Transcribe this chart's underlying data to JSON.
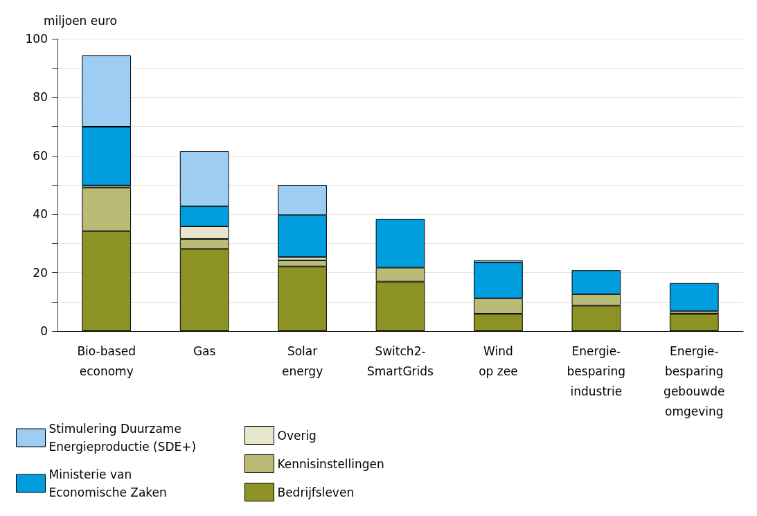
{
  "chart_data": {
    "type": "bar",
    "stacked": true,
    "ylabel": "miljoen euro",
    "categories": [
      "Bio-based\neconomy",
      "Gas",
      "Solar\nenergy",
      "Switch2-\nSmartGrids",
      "Wind\nop zee",
      "Energie-\nbesparing\nindustrie",
      "Energie-\nbesparing\ngebouwde\nomgeving"
    ],
    "series": [
      {
        "name": "Bedrijfsleven",
        "color": "#8c9223",
        "values": [
          34.2,
          28.1,
          22.1,
          16.9,
          5.9,
          8.7,
          5.9
        ]
      },
      {
        "name": "Kennisinstellingen",
        "color": "#babb77",
        "values": [
          14.9,
          3.4,
          2.1,
          4.8,
          5.3,
          3.9,
          0.9
        ]
      },
      {
        "name": "Overig",
        "color": "#e5e6cb",
        "values": [
          0.7,
          4.3,
          1.1,
          0,
          0,
          0,
          0
        ]
      },
      {
        "name": "Ministerie van Economische Zaken",
        "color": "#009ddf",
        "values": [
          20.1,
          6.9,
          14.4,
          16.7,
          12.3,
          8.2,
          9.6
        ]
      },
      {
        "name": "Stimulering Duurzame Energieproductie (SDE+)",
        "color": "#9dcdf2",
        "values": [
          24.4,
          18.9,
          10.3,
          0,
          0.7,
          0,
          0
        ]
      }
    ],
    "ylim": [
      0,
      100
    ],
    "yticks": [
      0,
      {
        "value": 10,
        "label": null
      },
      20,
      {
        "value": 30,
        "label": null
      },
      40,
      {
        "value": 50,
        "label": null
      },
      60,
      {
        "value": 70,
        "label": null
      },
      80,
      {
        "value": 90,
        "label": null
      },
      100
    ],
    "grid": "y",
    "legend": "bottom left"
  }
}
